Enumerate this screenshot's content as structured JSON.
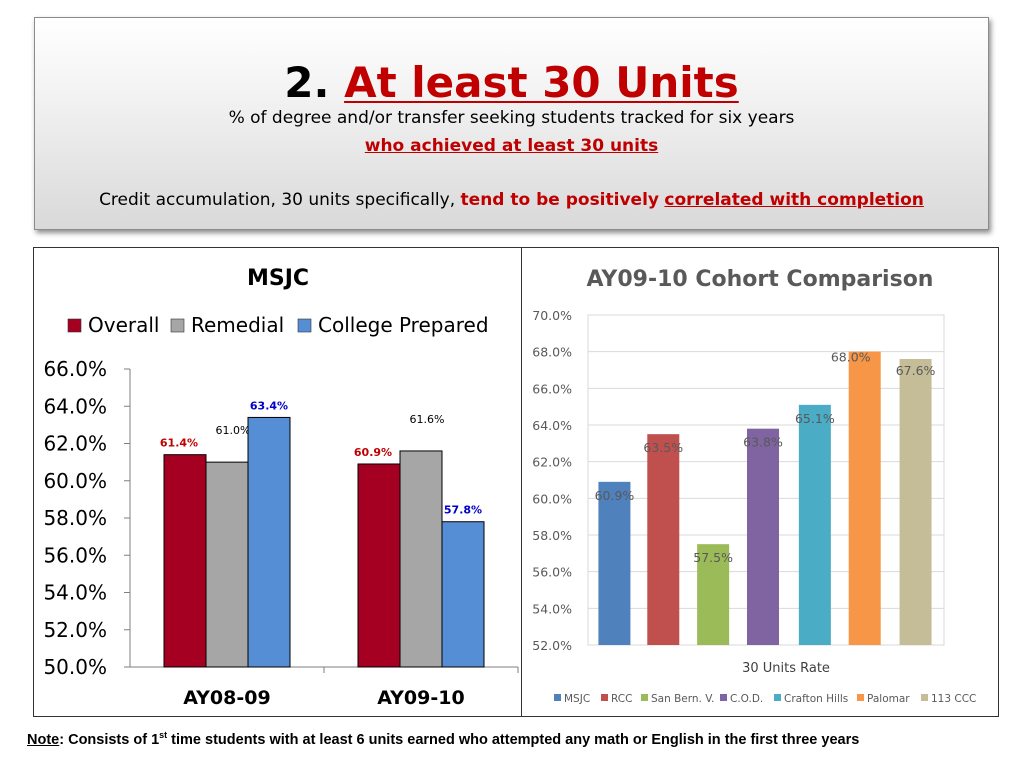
{
  "banner": {
    "number": "2.",
    "title": "At least 30 Units",
    "subtitle": "% of degree and/or transfer seeking students tracked for six years",
    "subtitle_highlight": "who achieved at least 30 units",
    "statement_prefix": "Credit accumulation, 30 units specifically,",
    "statement_red": "tend to be positively",
    "statement_red_underlined": "correlated with completion"
  },
  "colors": {
    "overall": "#a50021",
    "remedial": "#a6a6a6",
    "college_prepared": "#558ed5",
    "title_red": "#c00000"
  },
  "chart_data": [
    {
      "type": "bar",
      "title": "MSJC",
      "categories": [
        "AY08-09",
        "AY09-10"
      ],
      "series": [
        {
          "name": "Overall",
          "values": [
            61.4,
            60.9
          ],
          "labels": [
            "61.4%",
            "60.9%"
          ],
          "color": "#a50021",
          "label_color": "#c00000"
        },
        {
          "name": "Remedial",
          "values": [
            61.0,
            61.6
          ],
          "labels": [
            "61.0%",
            "61.6%"
          ],
          "color": "#a6a6a6",
          "label_color": "#000000"
        },
        {
          "name": "College Prepared",
          "values": [
            63.4,
            57.8
          ],
          "labels": [
            "63.4%",
            "57.8%"
          ],
          "color": "#558ed5",
          "label_color": "#0000cc"
        }
      ],
      "ylim": [
        50,
        66
      ],
      "yticks": [
        "50.0%",
        "52.0%",
        "54.0%",
        "56.0%",
        "58.0%",
        "60.0%",
        "62.0%",
        "64.0%",
        "66.0%"
      ],
      "grid": false,
      "legend": "top"
    },
    {
      "type": "bar",
      "title": "AY09-10 Cohort Comparison",
      "xlabel": "30 Units Rate",
      "series": [
        {
          "name": "MSJC",
          "value": 60.9,
          "label": "60.9%",
          "color": "#4f81bd"
        },
        {
          "name": "RCC",
          "value": 63.5,
          "label": "63.5%",
          "color": "#c0504d"
        },
        {
          "name": "San Bern. V.",
          "value": 57.5,
          "label": "57.5%",
          "color": "#9bbb59"
        },
        {
          "name": "C.O.D.",
          "value": 63.8,
          "label": "63.8%",
          "color": "#8064a2"
        },
        {
          "name": "Crafton Hills",
          "value": 65.1,
          "label": "65.1%",
          "color": "#4bacc6"
        },
        {
          "name": "Palomar",
          "value": 68.0,
          "label": "68.0%",
          "color": "#f79646"
        },
        {
          "name": "113 CCC",
          "value": 67.6,
          "label": "67.6%",
          "color": "#c4bd97"
        }
      ],
      "ylim": [
        52,
        70
      ],
      "yticks": [
        "52.0%",
        "54.0%",
        "56.0%",
        "58.0%",
        "60.0%",
        "62.0%",
        "64.0%",
        "66.0%",
        "68.0%",
        "70.0%"
      ],
      "grid": true,
      "legend": "bottom"
    }
  ],
  "note": {
    "label": "Note",
    "text_before_sup": ": Consists of 1",
    "sup": "st",
    "text_after_sup": " time students with at least 6 units earned who attempted any math or English in the first three years"
  }
}
